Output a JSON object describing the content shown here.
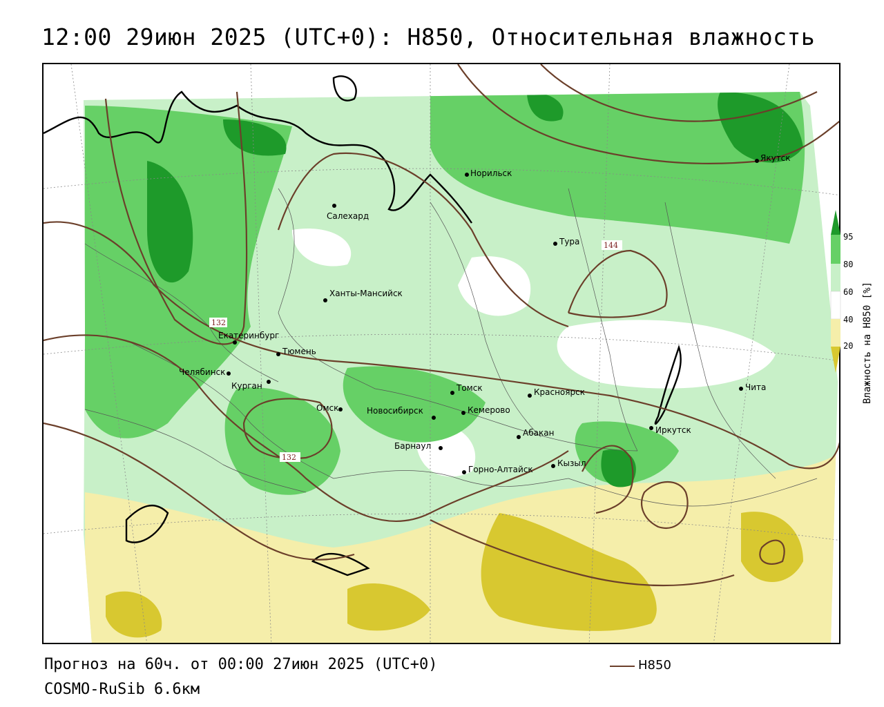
{
  "title": "12:00 29июн 2025 (UTC+0): H850, Относительная влажность",
  "footer": {
    "forecast": "Прогноз на 60ч. от 00:00 27июн 2025 (UTC+0)",
    "model": "COSMO-RuSib 6.6км"
  },
  "legend": {
    "line_label": "H850",
    "line_color": "#6b3f2a"
  },
  "colorbar": {
    "label": "Влажность на H850 [%]",
    "ticks": [
      "95",
      "80",
      "60",
      "40",
      "20"
    ],
    "colors": {
      "very_dry": "#d8c830",
      "dry": "#f5eeaa",
      "moist": "#c8f0c8",
      "humid": "#66d066",
      "very_humid": "#1e9a2a"
    }
  },
  "cities": [
    {
      "name": "Якутск"
    },
    {
      "name": "Норильск"
    },
    {
      "name": "Салехард"
    },
    {
      "name": "Тура"
    },
    {
      "name": "Ханты-Мансийск"
    },
    {
      "name": "Екатеринбург"
    },
    {
      "name": "Тюмень"
    },
    {
      "name": "Челябинск"
    },
    {
      "name": "Курган"
    },
    {
      "name": "Омск"
    },
    {
      "name": "Новосибирск"
    },
    {
      "name": "Томск"
    },
    {
      "name": "Кемерово"
    },
    {
      "name": "Красноярск"
    },
    {
      "name": "Барнаул"
    },
    {
      "name": "Абакан"
    },
    {
      "name": "Горно-Алтайск"
    },
    {
      "name": "Кызыл"
    },
    {
      "name": "Иркутск"
    },
    {
      "name": "Чита"
    }
  ],
  "contour_labels": [
    "132",
    "132",
    "144"
  ]
}
